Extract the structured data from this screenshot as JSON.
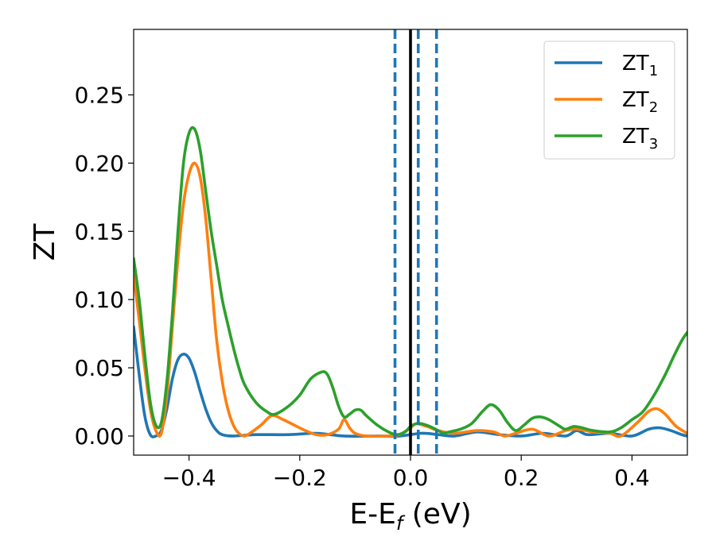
{
  "chart_data": {
    "type": "line",
    "xlabel_main": "E-E",
    "xlabel_sub": "f",
    "xlabel_tail": " (eV)",
    "ylabel": "ZT",
    "xlim": [
      -0.5,
      0.5
    ],
    "ylim": [
      -0.014,
      0.298
    ],
    "xticks": [
      -0.4,
      -0.2,
      0.0,
      0.2,
      0.4
    ],
    "xtick_labels": [
      "−0.4",
      "−0.2",
      "0.0",
      "0.2",
      "0.4"
    ],
    "yticks": [
      0.0,
      0.05,
      0.1,
      0.15,
      0.2,
      0.25
    ],
    "ytick_labels": [
      "0.00",
      "0.05",
      "0.10",
      "0.15",
      "0.20",
      "0.25"
    ],
    "grid": false,
    "legend_position": "top-right",
    "vertical_lines": [
      {
        "x": -0.028,
        "style": "dashed",
        "color": "#1f77b4"
      },
      {
        "x": 0.0,
        "style": "solid",
        "color": "#000000"
      },
      {
        "x": 0.014,
        "style": "dashed",
        "color": "#1f77b4"
      },
      {
        "x": 0.047,
        "style": "dashed",
        "color": "#1f77b4"
      }
    ],
    "series": [
      {
        "name_main": "ZT",
        "name_sub": "1",
        "color": "#1f77b4",
        "points": [
          [
            -0.5,
            0.08
          ],
          [
            -0.49,
            0.045
          ],
          [
            -0.48,
            0.015
          ],
          [
            -0.47,
            0.001
          ],
          [
            -0.46,
            0.0
          ],
          [
            -0.45,
            0.004
          ],
          [
            -0.44,
            0.02
          ],
          [
            -0.43,
            0.042
          ],
          [
            -0.42,
            0.056
          ],
          [
            -0.41,
            0.06
          ],
          [
            -0.4,
            0.057
          ],
          [
            -0.39,
            0.047
          ],
          [
            -0.38,
            0.033
          ],
          [
            -0.37,
            0.02
          ],
          [
            -0.36,
            0.01
          ],
          [
            -0.35,
            0.004
          ],
          [
            -0.34,
            0.001
          ],
          [
            -0.32,
            0.0
          ],
          [
            -0.28,
            0.001
          ],
          [
            -0.22,
            0.001
          ],
          [
            -0.17,
            0.002
          ],
          [
            -0.12,
            0.0
          ],
          [
            -0.06,
            0.0
          ],
          [
            -0.02,
            0.0
          ],
          [
            0.02,
            0.002
          ],
          [
            0.05,
            0.001
          ],
          [
            0.08,
            0.0
          ],
          [
            0.12,
            0.003
          ],
          [
            0.16,
            0.001
          ],
          [
            0.2,
            0.0
          ],
          [
            0.24,
            0.002
          ],
          [
            0.28,
            0.0
          ],
          [
            0.3,
            0.004
          ],
          [
            0.32,
            0.001
          ],
          [
            0.36,
            0.002
          ],
          [
            0.4,
            0.0
          ],
          [
            0.43,
            0.005
          ],
          [
            0.45,
            0.006
          ],
          [
            0.47,
            0.004
          ],
          [
            0.49,
            0.001
          ],
          [
            0.5,
            0.0
          ]
        ]
      },
      {
        "name_main": "ZT",
        "name_sub": "2",
        "color": "#ff7f0e",
        "points": [
          [
            -0.5,
            0.118
          ],
          [
            -0.49,
            0.085
          ],
          [
            -0.48,
            0.05
          ],
          [
            -0.47,
            0.02
          ],
          [
            -0.46,
            0.004
          ],
          [
            -0.45,
            0.002
          ],
          [
            -0.44,
            0.03
          ],
          [
            -0.43,
            0.08
          ],
          [
            -0.42,
            0.13
          ],
          [
            -0.41,
            0.17
          ],
          [
            -0.4,
            0.192
          ],
          [
            -0.39,
            0.2
          ],
          [
            -0.38,
            0.19
          ],
          [
            -0.37,
            0.16
          ],
          [
            -0.36,
            0.115
          ],
          [
            -0.35,
            0.07
          ],
          [
            -0.34,
            0.04
          ],
          [
            -0.33,
            0.02
          ],
          [
            -0.32,
            0.008
          ],
          [
            -0.31,
            0.002
          ],
          [
            -0.3,
            0.0
          ],
          [
            -0.29,
            0.002
          ],
          [
            -0.27,
            0.008
          ],
          [
            -0.25,
            0.015
          ],
          [
            -0.23,
            0.012
          ],
          [
            -0.21,
            0.008
          ],
          [
            -0.19,
            0.004
          ],
          [
            -0.17,
            0.001
          ],
          [
            -0.15,
            0.001
          ],
          [
            -0.13,
            0.005
          ],
          [
            -0.12,
            0.012
          ],
          [
            -0.11,
            0.006
          ],
          [
            -0.1,
            0.002
          ],
          [
            -0.08,
            0.0
          ],
          [
            -0.04,
            0.0
          ],
          [
            -0.02,
            0.001
          ],
          [
            0.0,
            0.006
          ],
          [
            0.01,
            0.009
          ],
          [
            0.03,
            0.007
          ],
          [
            0.05,
            0.004
          ],
          [
            0.08,
            0.002
          ],
          [
            0.12,
            0.004
          ],
          [
            0.15,
            0.003
          ],
          [
            0.17,
            0.0
          ],
          [
            0.19,
            0.002
          ],
          [
            0.22,
            0.005
          ],
          [
            0.25,
            0.0
          ],
          [
            0.28,
            0.004
          ],
          [
            0.3,
            0.005
          ],
          [
            0.33,
            0.003
          ],
          [
            0.36,
            0.002
          ],
          [
            0.38,
            0.0
          ],
          [
            0.41,
            0.01
          ],
          [
            0.43,
            0.018
          ],
          [
            0.445,
            0.02
          ],
          [
            0.46,
            0.016
          ],
          [
            0.48,
            0.007
          ],
          [
            0.5,
            0.002
          ]
        ]
      },
      {
        "name_main": "ZT",
        "name_sub": "3",
        "color": "#2ca02c",
        "points": [
          [
            -0.5,
            0.13
          ],
          [
            -0.49,
            0.1
          ],
          [
            -0.48,
            0.06
          ],
          [
            -0.47,
            0.025
          ],
          [
            -0.46,
            0.008
          ],
          [
            -0.45,
            0.01
          ],
          [
            -0.44,
            0.04
          ],
          [
            -0.43,
            0.09
          ],
          [
            -0.42,
            0.15
          ],
          [
            -0.41,
            0.2
          ],
          [
            -0.4,
            0.222
          ],
          [
            -0.39,
            0.225
          ],
          [
            -0.38,
            0.21
          ],
          [
            -0.37,
            0.18
          ],
          [
            -0.36,
            0.15
          ],
          [
            -0.35,
            0.125
          ],
          [
            -0.34,
            0.1
          ],
          [
            -0.33,
            0.082
          ],
          [
            -0.32,
            0.065
          ],
          [
            -0.31,
            0.05
          ],
          [
            -0.3,
            0.038
          ],
          [
            -0.28,
            0.025
          ],
          [
            -0.26,
            0.018
          ],
          [
            -0.245,
            0.016
          ],
          [
            -0.22,
            0.022
          ],
          [
            -0.2,
            0.03
          ],
          [
            -0.18,
            0.042
          ],
          [
            -0.16,
            0.047
          ],
          [
            -0.15,
            0.045
          ],
          [
            -0.14,
            0.035
          ],
          [
            -0.13,
            0.022
          ],
          [
            -0.12,
            0.014
          ],
          [
            -0.11,
            0.016
          ],
          [
            -0.1,
            0.019
          ],
          [
            -0.09,
            0.019
          ],
          [
            -0.08,
            0.015
          ],
          [
            -0.06,
            0.008
          ],
          [
            -0.04,
            0.003
          ],
          [
            -0.025,
            0.001
          ],
          [
            -0.01,
            0.003
          ],
          [
            0.0,
            0.007
          ],
          [
            0.01,
            0.009
          ],
          [
            0.02,
            0.009
          ],
          [
            0.035,
            0.007
          ],
          [
            0.05,
            0.004
          ],
          [
            0.06,
            0.002
          ],
          [
            0.07,
            0.003
          ],
          [
            0.09,
            0.005
          ],
          [
            0.11,
            0.009
          ],
          [
            0.13,
            0.018
          ],
          [
            0.145,
            0.023
          ],
          [
            0.16,
            0.019
          ],
          [
            0.175,
            0.01
          ],
          [
            0.19,
            0.004
          ],
          [
            0.205,
            0.008
          ],
          [
            0.22,
            0.013
          ],
          [
            0.235,
            0.014
          ],
          [
            0.25,
            0.012
          ],
          [
            0.27,
            0.007
          ],
          [
            0.28,
            0.005
          ],
          [
            0.295,
            0.007
          ],
          [
            0.31,
            0.006
          ],
          [
            0.33,
            0.004
          ],
          [
            0.36,
            0.003
          ],
          [
            0.38,
            0.006
          ],
          [
            0.4,
            0.012
          ],
          [
            0.42,
            0.018
          ],
          [
            0.44,
            0.03
          ],
          [
            0.46,
            0.045
          ],
          [
            0.475,
            0.058
          ],
          [
            0.49,
            0.07
          ],
          [
            0.5,
            0.076
          ]
        ]
      }
    ]
  }
}
